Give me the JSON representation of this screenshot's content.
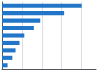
{
  "chart_data": {
    "type": "bar",
    "orientation": "horizontal",
    "categories": [
      null,
      null,
      null,
      null,
      null,
      null,
      null,
      null,
      null
    ],
    "values": [
      1,
      0.78,
      0.48,
      0.4,
      0.28,
      0.22,
      0.17,
      0.13,
      0.07
    ],
    "color": "#2176c7",
    "xlim": [
      0,
      1.18
    ],
    "xticks": [
      0.25,
      0.5,
      0.75,
      1
    ],
    "grid": true,
    "tick_labels": false
  }
}
